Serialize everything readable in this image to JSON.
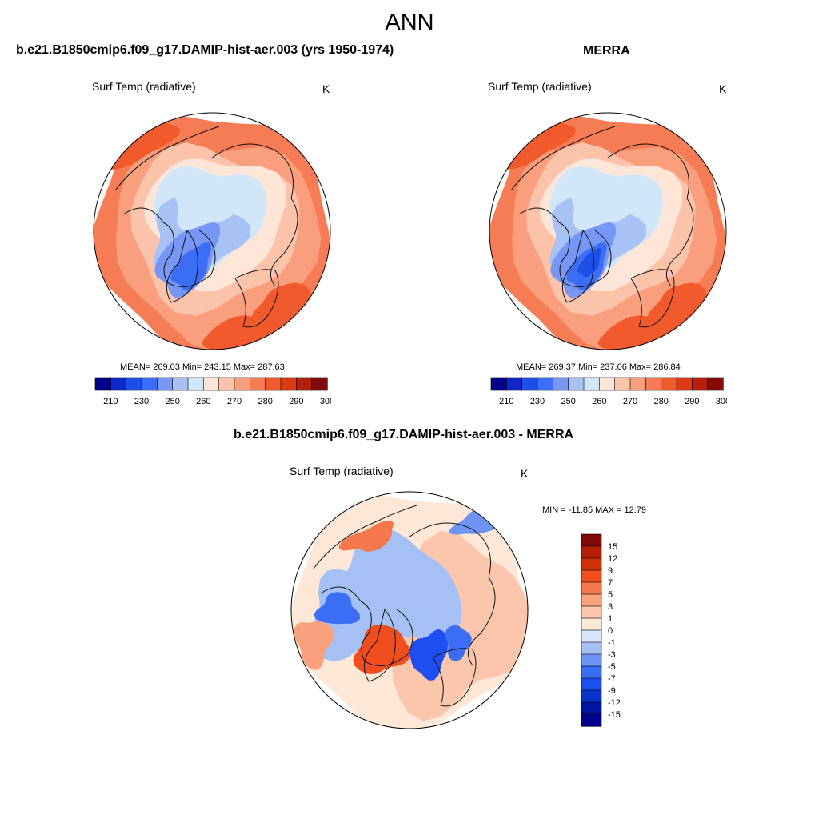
{
  "main_title": "ANN",
  "colors": {
    "abs_scale": [
      "#00008a",
      "#0c28c8",
      "#1e4ee6",
      "#3c6ef5",
      "#7896f5",
      "#a8c2f5",
      "#d2e6fa",
      "#fde6d8",
      "#fcc3ab",
      "#fa9f7e",
      "#f57c55",
      "#f05a2c",
      "#dc3a14",
      "#b41e0a",
      "#820a0a"
    ],
    "diff_scale": [
      "#00008a",
      "#0014a0",
      "#0a32cc",
      "#1e4ef0",
      "#3c6ef5",
      "#6e94f5",
      "#a5c0f5",
      "#d7e6fa",
      "#fde8d8",
      "#fcc6ac",
      "#faa07c",
      "#f5784c",
      "#f04e1e",
      "#d23208",
      "#b41e05",
      "#820a0a"
    ],
    "coast": "#111111"
  },
  "panels": {
    "model": {
      "title": "b.e21.B1850cmip6.f09_g17.DAMIP-hist-aer.003 (yrs 1950-1974)",
      "variable": "Surf Temp (radiative)",
      "units": "K",
      "stats": "MEAN= 269.03  Min= 243.15  Max= 287.63",
      "colorbar_labels": [
        "210",
        "230",
        "250",
        "260",
        "270",
        "280",
        "290",
        "300"
      ]
    },
    "obs": {
      "title": "MERRA",
      "variable": "Surf Temp (radiative)",
      "units": "K",
      "stats": "MEAN= 269.37  Min= 237.06  Max= 286.84",
      "colorbar_labels": [
        "210",
        "230",
        "250",
        "260",
        "270",
        "280",
        "290",
        "300"
      ]
    },
    "diff": {
      "title": "b.e21.B1850cmip6.f09_g17.DAMIP-hist-aer.003 - MERRA",
      "variable": "Surf Temp (radiative)",
      "units": "K",
      "minmax": "MIN = -11.85 MAX =  12.79",
      "colorbar_labels": [
        "15",
        "12",
        "9",
        "7",
        "5",
        "3",
        "1",
        "0",
        "-1",
        "-3",
        "-5",
        "-7",
        "-9",
        "-12",
        "-15"
      ]
    }
  }
}
